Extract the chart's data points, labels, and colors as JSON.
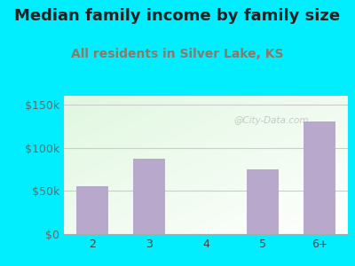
{
  "title": "Median family income by family size",
  "subtitle": "All residents in Silver Lake, KS",
  "categories": [
    "2",
    "3",
    "4",
    "5",
    "6+"
  ],
  "values": [
    55000,
    87000,
    0,
    75000,
    130000
  ],
  "bar_color": "#b8a8cc",
  "title_fontsize": 13,
  "subtitle_fontsize": 10,
  "title_color": "#222222",
  "subtitle_color": "#8a7a6a",
  "ylabel_ticks": [
    0,
    50000,
    100000,
    150000
  ],
  "ylabel_labels": [
    "$0",
    "$50k",
    "$100k",
    "$150k"
  ],
  "ylim": [
    0,
    160000
  ],
  "background_outer": "#00eeff",
  "watermark": "@City-Data.com"
}
